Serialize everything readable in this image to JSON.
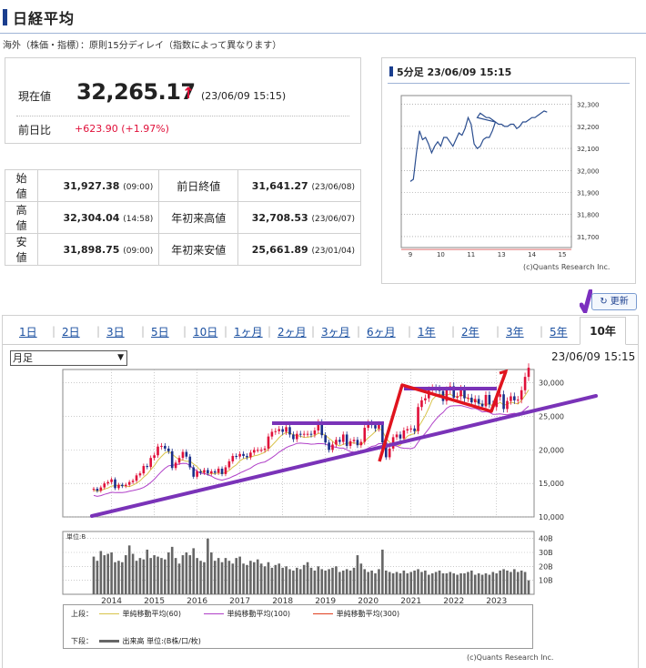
{
  "page": {
    "title": "日経平均",
    "notice": "海外（株価・指標）：原則15分ディレイ（指数によって異なります）"
  },
  "current": {
    "label": "現在値",
    "value": "32,265.17",
    "arrow": "↑",
    "time": "(23/06/09 15:15)",
    "diff_label": "前日比",
    "diff_value": "+623.90 (+1.97%)",
    "up_color": "#e0103a"
  },
  "stats": [
    {
      "k1": "始値",
      "v1": "31,927.38",
      "t1": "(09:00)",
      "k2": "前日終値",
      "v2": "31,641.27",
      "t2": "(23/06/08)"
    },
    {
      "k1": "高値",
      "v1": "32,304.04",
      "t1": "(14:58)",
      "k2": "年初来高値",
      "v2": "32,708.53",
      "t2": "(23/06/07)"
    },
    {
      "k1": "安値",
      "v1": "31,898.75",
      "t1": "(09:00)",
      "k2": "年初来安値",
      "v2": "25,661.89",
      "t2": "(23/01/04)"
    }
  ],
  "mini": {
    "title": "5分足 23/06/09 15:15",
    "copyright": "(c)Quants Research Inc."
  },
  "refresh_label": "更新",
  "tabs": [
    "1日",
    "2日",
    "3日",
    "5日",
    "10日",
    "1ヶ月",
    "2ヶ月",
    "3ヶ月",
    "6ヶ月",
    "1年",
    "2年",
    "3年",
    "5年"
  ],
  "active_tab": "10年",
  "select_value": "月足",
  "chart_time": "23/06/09 15:15",
  "legend": {
    "upper_label": "上段：",
    "lower_label": "下段：",
    "items": [
      "単純移動平均(60)",
      "単純移動平均(100)",
      "単純移動平均(300)"
    ],
    "volume": "出来高 単位:(B株/口/枚)"
  },
  "copyright": "(c)Quants Research Inc.",
  "chart_data": [
    {
      "type": "line",
      "title": "5分足 23/06/09 15:15",
      "x_ticks": [
        "9",
        "10",
        "11",
        "13",
        "14",
        "15"
      ],
      "y_ticks": [
        "32,300",
        "32,200",
        "32,100",
        "32,000",
        "31,900",
        "31,800",
        "31,700"
      ],
      "ylim": [
        31650,
        32340
      ],
      "series": [
        {
          "x": [
            9.0,
            9.1,
            9.2,
            9.3,
            9.4,
            9.5,
            9.6,
            9.7,
            9.8,
            9.9,
            10.0,
            10.1,
            10.2,
            10.3,
            10.4,
            10.5,
            10.6,
            10.7,
            10.8,
            10.9,
            11.0,
            11.1,
            11.2,
            11.3,
            11.4,
            11.5,
            11.6,
            11.7,
            11.8,
            12.7,
            12.8,
            12.9,
            13.0,
            13.1,
            13.2,
            13.3,
            13.4,
            13.5,
            13.6,
            13.7,
            13.8,
            13.9,
            14.0,
            14.1,
            14.2,
            14.3,
            14.4,
            14.5,
            14.6,
            14.7,
            14.8,
            14.9,
            15.0
          ],
          "values": [
            31950,
            31960,
            32080,
            32180,
            32140,
            32150,
            32120,
            32080,
            32110,
            32130,
            32110,
            32150,
            32150,
            32130,
            32110,
            32140,
            32170,
            32160,
            32190,
            32240,
            32210,
            32120,
            32100,
            32110,
            32140,
            32150,
            32150,
            32180,
            32220,
            32240,
            32260,
            32250,
            32240,
            32240,
            32230,
            32220,
            32210,
            32210,
            32200,
            32200,
            32210,
            32210,
            32190,
            32200,
            32220,
            32220,
            32230,
            32240,
            32240,
            32250,
            32260,
            32270,
            32265
          ]
        }
      ]
    },
    {
      "type": "candlestick",
      "interval": "月足",
      "x_ticks": [
        "2014",
        "2015",
        "2016",
        "2017",
        "2018",
        "2019",
        "2020",
        "2021",
        "2022",
        "2023"
      ],
      "y_ticks": [
        "30,000",
        "25,000",
        "20,000",
        "15,000",
        "10,000"
      ],
      "ylim": [
        10000,
        32000
      ],
      "x_range": [
        2013.45,
        2023.45
      ],
      "closes": [
        14200,
        13900,
        14400,
        15000,
        15200,
        15600,
        14300,
        14800,
        14600,
        14800,
        15200,
        15400,
        16200,
        16500,
        17600,
        17450,
        18800,
        19200,
        20500,
        20600,
        20200,
        19800,
        17300,
        18100,
        18800,
        19700,
        19000,
        17400,
        16000,
        16800,
        16600,
        17000,
        16500,
        16800,
        16600,
        17200,
        16400,
        17400,
        18300,
        19100,
        19000,
        19400,
        19100,
        18900,
        19600,
        20000,
        20000,
        20000,
        20200,
        22000,
        22700,
        22800,
        23100,
        22700,
        23400,
        22300,
        21600,
        22400,
        22300,
        22400,
        22400,
        22300,
        22900,
        24100,
        22200,
        21100,
        20000,
        20800,
        21500,
        21200,
        22300,
        20600,
        21300,
        21500,
        20700,
        21200,
        23300,
        24000,
        23700,
        23200,
        23800,
        21100,
        18900,
        20200,
        21900,
        22300,
        21700,
        22900,
        23100,
        23200,
        22800,
        26400,
        27400,
        27700,
        28900,
        29200,
        29100,
        28800,
        27300,
        28900,
        29500,
        27800,
        28000,
        29100,
        27700,
        27800,
        27100,
        27600,
        26900,
        26500,
        28200,
        26800,
        26400,
        27900,
        28300,
        26100,
        27300,
        28000,
        27400,
        27500,
        28900,
        30900,
        32265
      ]
    },
    {
      "type": "bar",
      "title": "出来高",
      "unit": "単位:B",
      "y_ticks": [
        "40B",
        "30B",
        "20B",
        "10B"
      ],
      "ylim": [
        0,
        45
      ],
      "values": [
        27,
        24,
        31,
        28,
        29,
        30,
        23,
        24,
        23,
        28,
        35,
        29,
        24,
        26,
        25,
        32,
        26,
        28,
        27,
        26,
        25,
        30,
        34,
        26,
        22,
        28,
        30,
        28,
        33,
        26,
        24,
        23,
        40,
        30,
        24,
        26,
        23,
        26,
        24,
        22,
        26,
        27,
        22,
        21,
        24,
        23,
        25,
        22,
        20,
        23,
        19,
        21,
        22,
        19,
        20,
        18,
        17,
        19,
        18,
        21,
        23,
        19,
        17,
        20,
        18,
        17,
        18,
        19,
        20,
        16,
        17,
        18,
        17,
        19,
        28,
        22,
        18,
        16,
        17,
        15,
        18,
        32,
        17,
        16,
        15,
        16,
        15,
        17,
        15,
        16,
        17,
        18,
        16,
        17,
        14,
        15,
        16,
        17,
        15,
        15,
        16,
        15,
        14,
        15,
        15,
        16,
        17,
        14,
        15,
        14,
        15,
        14,
        16,
        15,
        17,
        18,
        17,
        16,
        18,
        16,
        17,
        16,
        10
      ]
    }
  ]
}
